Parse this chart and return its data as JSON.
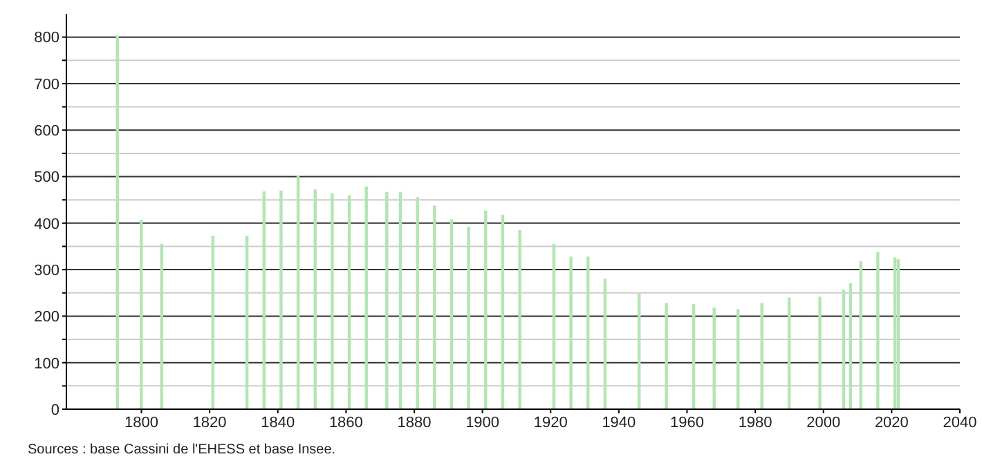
{
  "chart_data": {
    "type": "bar",
    "color": "#b3e4b3",
    "x": [
      1793,
      1800,
      1806,
      1821,
      1831,
      1836,
      1841,
      1846,
      1851,
      1856,
      1861,
      1866,
      1872,
      1876,
      1881,
      1886,
      1891,
      1896,
      1901,
      1906,
      1911,
      1921,
      1926,
      1931,
      1936,
      1946,
      1954,
      1962,
      1968,
      1975,
      1982,
      1990,
      1999,
      2006,
      2008,
      2011,
      2016,
      2021,
      2022
    ],
    "values": [
      803,
      407,
      355,
      373,
      373,
      468,
      470,
      502,
      472,
      464,
      460,
      479,
      467,
      467,
      456,
      438,
      408,
      392,
      427,
      418,
      385,
      355,
      328,
      328,
      281,
      250,
      228,
      226,
      218,
      215,
      228,
      240,
      242,
      257,
      271,
      318,
      338,
      326,
      322
    ],
    "xlim": [
      1778,
      2040
    ],
    "xticks": [
      1800,
      1820,
      1840,
      1860,
      1880,
      1900,
      1920,
      1940,
      1960,
      1980,
      2000,
      2020,
      2040
    ],
    "ylim": [
      0,
      850
    ],
    "yticks": [
      0,
      {
        "value": 50,
        "label": null
      },
      100,
      {
        "value": 150,
        "label": null
      },
      200,
      {
        "value": 250,
        "label": null
      },
      300,
      {
        "value": 350,
        "label": null
      },
      400,
      {
        "value": 450,
        "label": null
      },
      500,
      {
        "value": 550,
        "label": null
      },
      600,
      {
        "value": 650,
        "label": null
      },
      700,
      {
        "value": 750,
        "label": null
      },
      800
    ],
    "grid": "y",
    "annotations": [
      "Sources : base Cassini de l'EHESS et base Insee."
    ]
  }
}
